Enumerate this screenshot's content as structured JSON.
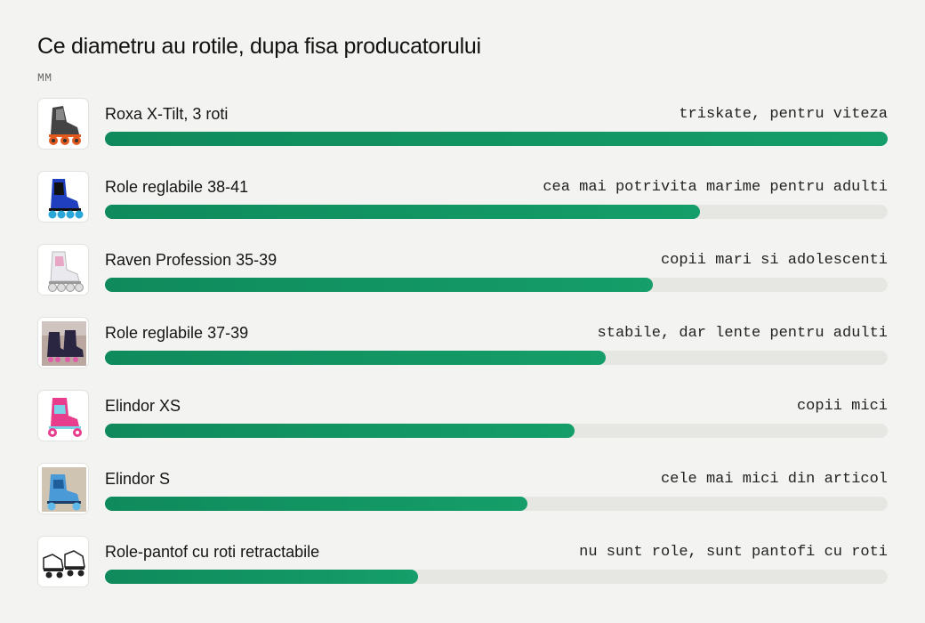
{
  "chart_data": {
    "type": "bar",
    "orientation": "horizontal",
    "title": "Ce diametru au rotile, dupa fisa producatorului",
    "unit": "MM",
    "xlim": [
      0,
      100
    ],
    "grid": false,
    "bar_color": "#119465",
    "track_color": "#e6e7e3",
    "categories": [
      "Roxa X-Tilt, 3 roti",
      "Role reglabile 38-41",
      "Raven Profession 35-39",
      "Role reglabile 37-39",
      "Elindor XS",
      "Elindor S",
      "Role-pantof cu roti retractabile"
    ],
    "notes": [
      "triskate, pentru viteza",
      "cea mai potrivita marime pentru adulti",
      "copii mari si adolescenti",
      "stabile, dar lente pentru adulti",
      "copii mici",
      "cele mai mici din articol",
      "nu sunt role, sunt pantofi cu roti"
    ],
    "values": [
      100,
      76,
      70,
      64,
      60,
      54,
      40
    ],
    "icons": [
      "inline-skate-tri-wheel-icon",
      "inline-skate-blue-icon",
      "inline-skate-white-icon",
      "inline-skate-photo-icon",
      "quad-skate-pink-icon",
      "quad-skate-blue-icon",
      "wheeled-shoe-icon"
    ]
  }
}
